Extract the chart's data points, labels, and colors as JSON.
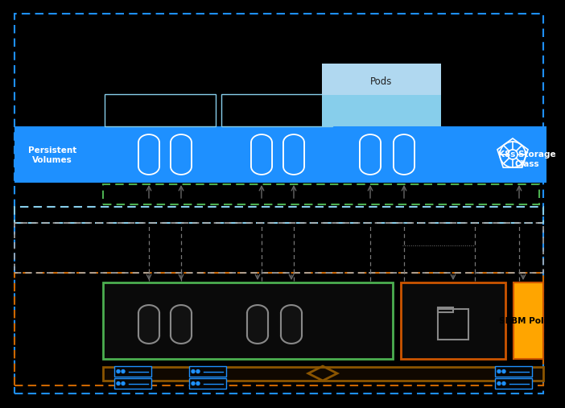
{
  "bg_color": "#000000",
  "blue_main": "#1E90FF",
  "blue_light": "#87CEEB",
  "blue_lighter": "#B0D8F0",
  "green_border": "#4CAF50",
  "orange_border": "#CC5500",
  "orange_fill": "#FFA500",
  "dark_orange_outer": "#CC6600",
  "brown_border": "#8B5500",
  "gray_line": "#888888",
  "white": "#FFFFFF",
  "pv_label": "Persistent\nVolumes",
  "k8s_label": "K8s Storage\nClass",
  "pods_label": "Pods",
  "spbm_label": "SPBM Policy"
}
